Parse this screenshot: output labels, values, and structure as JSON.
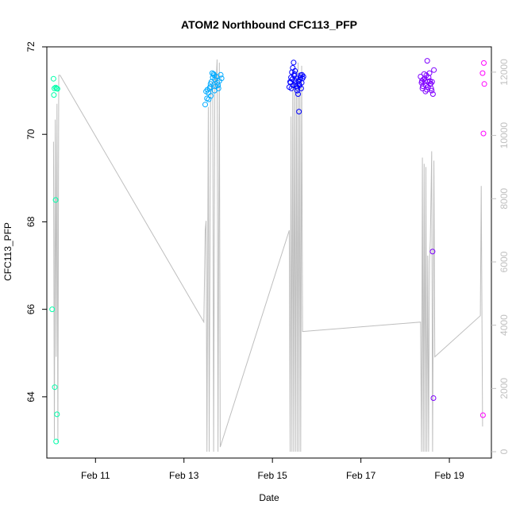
{
  "chart_data": {
    "type": "scatter",
    "title": "ATOM2 Northbound CFC113_PFP",
    "xlabel": "Date",
    "ylabel": "CFC113_PFP",
    "x_unit": "days (Feb 2017, fractional day of month)",
    "xlim": [
      9.9,
      19.95
    ],
    "ylim": [
      62.6,
      72.0
    ],
    "y2lim": [
      -200,
      12800
    ],
    "x_ticks": [
      {
        "value": 11,
        "label": "Feb 11"
      },
      {
        "value": 13,
        "label": "Feb 13"
      },
      {
        "value": 15,
        "label": "Feb 15"
      },
      {
        "value": 17,
        "label": "Feb 17"
      },
      {
        "value": 19,
        "label": "Feb 19"
      }
    ],
    "y_ticks": [
      64,
      66,
      68,
      70,
      72
    ],
    "y2_ticks": [
      0,
      2000,
      4000,
      6000,
      8000,
      10000,
      12000
    ],
    "colors": {
      "altitude_line": "#bebebe",
      "right_axis": "#c0c0c0",
      "point_palette": [
        "#00ffaa",
        "#00aaff",
        "#0000ff",
        "#7f00ff",
        "#ff00ff"
      ]
    },
    "altitude_line": [
      [
        10.05,
        9800
      ],
      [
        10.07,
        400
      ],
      [
        10.09,
        10500
      ],
      [
        10.11,
        3000
      ],
      [
        10.13,
        11000
      ],
      [
        10.15,
        300
      ],
      [
        10.17,
        11900
      ],
      [
        10.2,
        11900
      ],
      [
        13.45,
        4100
      ],
      [
        13.48,
        7000
      ],
      [
        13.5,
        7300
      ],
      [
        13.52,
        0
      ],
      [
        13.55,
        10900
      ],
      [
        13.57,
        0
      ],
      [
        13.6,
        11000
      ],
      [
        13.62,
        11600
      ],
      [
        13.65,
        11700
      ],
      [
        13.67,
        0
      ],
      [
        13.7,
        12000
      ],
      [
        13.72,
        11500
      ],
      [
        13.75,
        12400
      ],
      [
        13.77,
        0
      ],
      [
        13.8,
        12300
      ],
      [
        13.82,
        150
      ],
      [
        15.38,
        7000
      ],
      [
        15.4,
        0
      ],
      [
        15.42,
        10600
      ],
      [
        15.44,
        0
      ],
      [
        15.46,
        11700
      ],
      [
        15.48,
        0
      ],
      [
        15.5,
        11700
      ],
      [
        15.52,
        0
      ],
      [
        15.54,
        12000
      ],
      [
        15.56,
        0
      ],
      [
        15.58,
        12300
      ],
      [
        15.6,
        0
      ],
      [
        15.62,
        12000
      ],
      [
        15.64,
        0
      ],
      [
        15.66,
        12200
      ],
      [
        15.68,
        3800
      ],
      [
        18.35,
        4100
      ],
      [
        18.37,
        0
      ],
      [
        18.39,
        9300
      ],
      [
        18.41,
        0
      ],
      [
        18.43,
        9100
      ],
      [
        18.45,
        0
      ],
      [
        18.47,
        9000
      ],
      [
        18.49,
        0
      ],
      [
        18.51,
        6200
      ],
      [
        18.53,
        0
      ],
      [
        18.55,
        6000
      ],
      [
        18.57,
        6700
      ],
      [
        18.6,
        9500
      ],
      [
        18.62,
        0
      ],
      [
        18.65,
        9200
      ],
      [
        18.67,
        3000
      ],
      [
        19.7,
        4300
      ],
      [
        19.72,
        8400
      ],
      [
        19.75,
        800
      ]
    ],
    "series": [
      {
        "values": [
          [
            10.05,
            71.27
          ],
          [
            10.07,
            71.05
          ],
          [
            10.1,
            71.07
          ],
          [
            10.12,
            71.05
          ],
          [
            10.06,
            70.9
          ],
          [
            10.14,
            71.04
          ],
          [
            10.1,
            68.5
          ],
          [
            10.02,
            66.0
          ],
          [
            10.08,
            64.22
          ],
          [
            10.13,
            63.6
          ],
          [
            10.11,
            62.98
          ]
        ]
      },
      {
        "values": [
          [
            13.48,
            70.68
          ],
          [
            13.52,
            70.82
          ],
          [
            13.55,
            70.95
          ],
          [
            13.58,
            71.05
          ],
          [
            13.6,
            71.15
          ],
          [
            13.62,
            71.2
          ],
          [
            13.65,
            71.3
          ],
          [
            13.68,
            71.35
          ],
          [
            13.7,
            71.25
          ],
          [
            13.72,
            71.1
          ],
          [
            13.5,
            70.98
          ],
          [
            13.53,
            71.02
          ],
          [
            13.56,
            70.8
          ],
          [
            13.64,
            71.4
          ],
          [
            13.67,
            71.38
          ],
          [
            13.75,
            71.18
          ],
          [
            13.78,
            71.05
          ],
          [
            13.8,
            71.22
          ],
          [
            13.83,
            71.36
          ],
          [
            13.85,
            71.28
          ],
          [
            13.59,
            71.08
          ],
          [
            13.61,
            70.88
          ],
          [
            13.73,
            71.32
          ],
          [
            13.69,
            71.0
          ],
          [
            13.77,
            71.12
          ]
        ]
      },
      {
        "values": [
          [
            15.38,
            71.08
          ],
          [
            15.4,
            71.2
          ],
          [
            15.42,
            71.3
          ],
          [
            15.44,
            71.42
          ],
          [
            15.46,
            71.52
          ],
          [
            15.48,
            71.64
          ],
          [
            15.5,
            71.38
          ],
          [
            15.52,
            71.22
          ],
          [
            15.54,
            71.1
          ],
          [
            15.56,
            71.0
          ],
          [
            15.58,
            70.92
          ],
          [
            15.6,
            71.15
          ],
          [
            15.62,
            71.25
          ],
          [
            15.64,
            71.35
          ],
          [
            15.66,
            71.18
          ],
          [
            15.68,
            71.28
          ],
          [
            15.7,
            71.32
          ],
          [
            15.41,
            71.18
          ],
          [
            15.43,
            71.05
          ],
          [
            15.45,
            71.26
          ],
          [
            15.47,
            71.12
          ],
          [
            15.49,
            71.34
          ],
          [
            15.51,
            71.45
          ],
          [
            15.53,
            71.15
          ],
          [
            15.55,
            71.28
          ],
          [
            15.57,
            71.06
          ],
          [
            15.59,
            71.22
          ],
          [
            15.61,
            71.12
          ],
          [
            15.63,
            71.3
          ],
          [
            15.65,
            71.05
          ],
          [
            15.67,
            71.36
          ],
          [
            15.6,
            70.52
          ]
        ]
      },
      {
        "values": [
          [
            18.35,
            71.32
          ],
          [
            18.37,
            71.18
          ],
          [
            18.39,
            71.05
          ],
          [
            18.41,
            71.25
          ],
          [
            18.43,
            71.38
          ],
          [
            18.45,
            71.22
          ],
          [
            18.47,
            71.12
          ],
          [
            18.49,
            71.02
          ],
          [
            18.51,
            71.2
          ],
          [
            18.53,
            71.3
          ],
          [
            18.55,
            71.4
          ],
          [
            18.57,
            71.15
          ],
          [
            18.59,
            71.05
          ],
          [
            18.61,
            71.2
          ],
          [
            18.63,
            70.92
          ],
          [
            18.65,
            71.47
          ],
          [
            18.5,
            71.68
          ],
          [
            18.4,
            71.1
          ],
          [
            18.44,
            71.28
          ],
          [
            18.48,
            71.35
          ],
          [
            18.52,
            71.08
          ],
          [
            18.56,
            71.22
          ],
          [
            18.6,
            71.0
          ],
          [
            18.38,
            71.22
          ],
          [
            18.46,
            70.98
          ],
          [
            18.58,
            71.16
          ],
          [
            18.62,
            67.32
          ],
          [
            18.64,
            63.97
          ]
        ]
      },
      {
        "values": [
          [
            19.78,
            71.63
          ],
          [
            19.75,
            71.4
          ],
          [
            19.79,
            71.15
          ],
          [
            19.77,
            70.02
          ],
          [
            19.76,
            63.58
          ]
        ]
      }
    ]
  }
}
